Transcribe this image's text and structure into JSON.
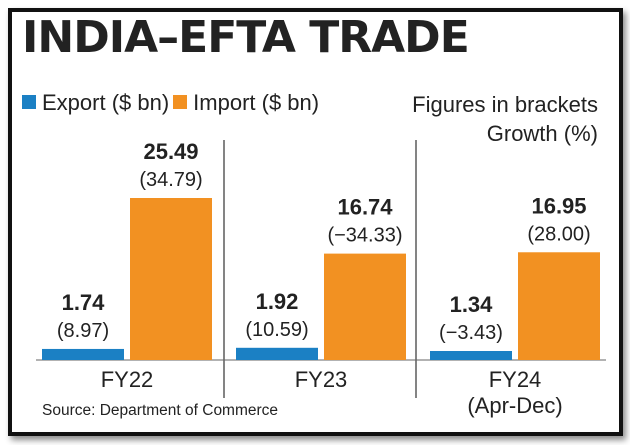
{
  "chart_data": {
    "type": "bar",
    "title": "INDIA–EFTA TRADE",
    "categories": [
      "FY22",
      "FY23",
      "FY24"
    ],
    "category_sublabels": [
      "",
      "",
      "(Apr-Dec)"
    ],
    "series": [
      {
        "name": "Export ($ bn)",
        "color": "#1b80c4",
        "values": [
          1.74,
          1.92,
          1.34
        ],
        "labels": [
          "1.74",
          "1.92",
          "1.34"
        ],
        "growth": [
          "(8.97)",
          "(10.59)",
          "(−3.43)"
        ]
      },
      {
        "name": "Import ($ bn)",
        "color": "#f29122",
        "values": [
          25.49,
          16.74,
          16.95
        ],
        "labels": [
          "25.49",
          "16.74",
          "16.95"
        ],
        "growth": [
          "(34.79)",
          "(−34.33)",
          "(28.00)"
        ]
      }
    ],
    "note": [
      "Figures in brackets",
      "Growth (%)"
    ],
    "source": "Source: Department of Commerce",
    "ylim": [
      0,
      25.49
    ],
    "grid": false,
    "legend": "top-left"
  }
}
